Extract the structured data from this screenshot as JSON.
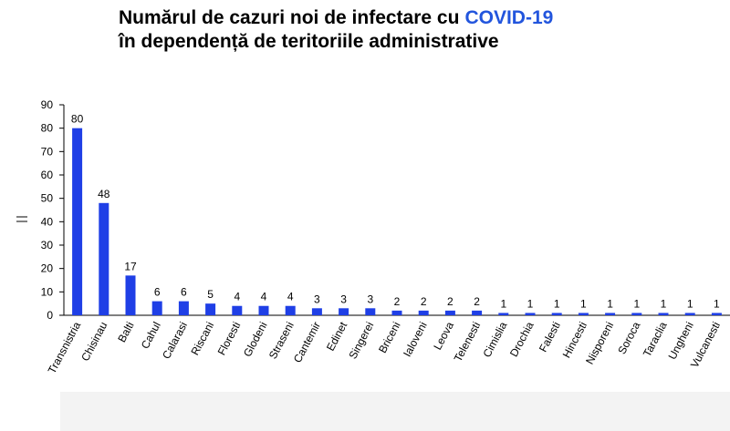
{
  "chart_data": {
    "type": "bar",
    "title": [
      "Numărul de cazuri noi de infectare cu",
      "COVID-19",
      "în dependență de teritoriile administrative"
    ],
    "categories": [
      "Transnistria",
      "Chisinau",
      "Balti",
      "Cahul",
      "Calarasi",
      "Riscani",
      "Floresti",
      "Glodeni",
      "Straseni",
      "Cantemir",
      "Edinet",
      "Singerei",
      "Briceni",
      "Ialoveni",
      "Leova",
      "Telenesti",
      "Cimislia",
      "Drochia",
      "Falesti",
      "Hincesti",
      "Nisporeni",
      "Soroca",
      "Taraclia",
      "Ungheni",
      "Vulcanesti"
    ],
    "values": [
      80,
      48,
      17,
      6,
      6,
      5,
      4,
      4,
      4,
      3,
      3,
      3,
      2,
      2,
      2,
      2,
      1,
      1,
      1,
      1,
      1,
      1,
      1,
      1,
      1
    ],
    "color": "#1f3fe6",
    "ylim": [
      0,
      90
    ],
    "yticks": [
      0,
      10,
      20,
      30,
      40,
      50,
      60,
      70,
      80,
      90
    ],
    "grid": false
  }
}
